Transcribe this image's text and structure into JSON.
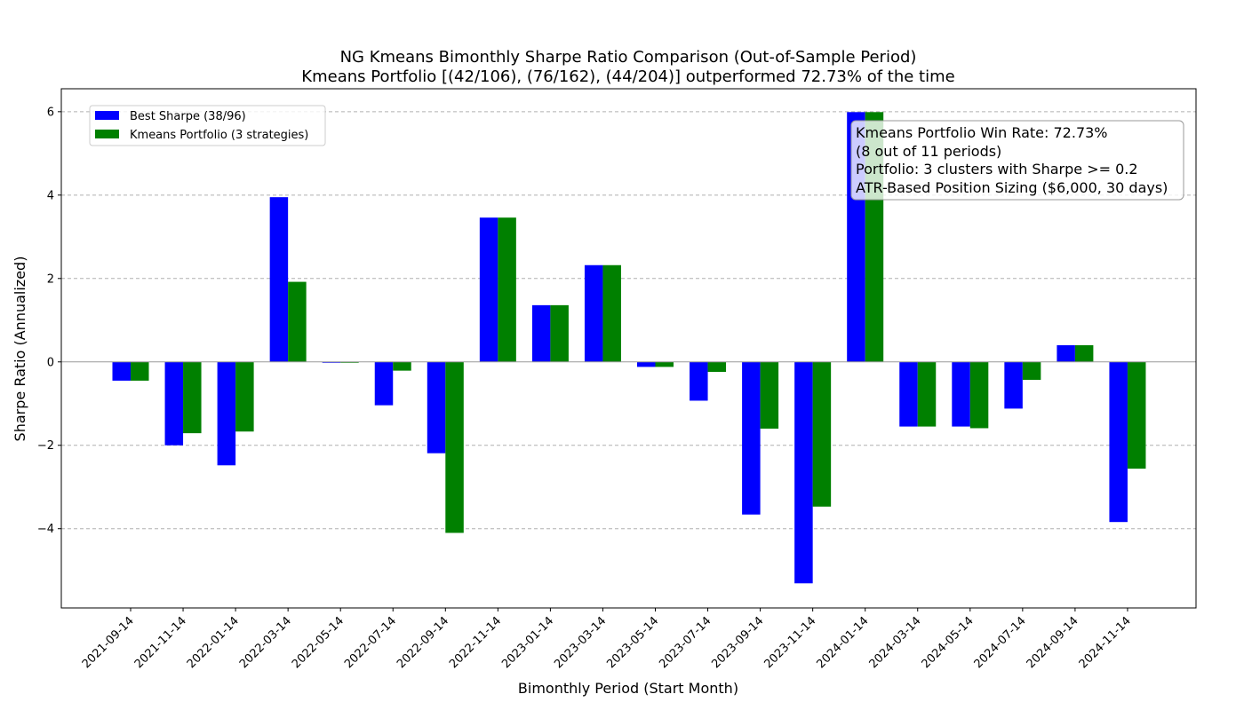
{
  "chart_data": {
    "type": "bar",
    "title": "NG Kmeans Bimonthly Sharpe Ratio Comparison (Out-of-Sample Period)",
    "subtitle": "Kmeans Portfolio [(42/106), (76/162), (44/204)] outperformed 72.73% of the time",
    "xlabel": "Bimonthly Period (Start Month)",
    "ylabel": "Sharpe Ratio (Annualized)",
    "ylim": [
      -5.9,
      6.55
    ],
    "yticks": [
      -4,
      -2,
      0,
      2,
      4,
      6
    ],
    "ytick_labels": [
      "−4",
      "−2",
      "0",
      "2",
      "4",
      "6"
    ],
    "grid": "horizontal dashed",
    "legend_position": "top-left",
    "categories": [
      "2021-09-14",
      "2021-11-14",
      "2022-01-14",
      "2022-03-14",
      "2022-05-14",
      "2022-07-14",
      "2022-09-14",
      "2022-11-14",
      "2023-01-14",
      "2023-03-14",
      "2023-05-14",
      "2023-07-14",
      "2023-09-14",
      "2023-11-14",
      "2024-01-14",
      "2024-03-14",
      "2024-05-14",
      "2024-07-14",
      "2024-09-14",
      "2024-11-14"
    ],
    "series": [
      {
        "name": "Best Sharpe (38/96)",
        "color": "#0000ff",
        "values": [
          -0.45,
          -2.0,
          -2.48,
          3.95,
          -0.02,
          -1.04,
          -2.19,
          3.46,
          1.36,
          2.32,
          -0.12,
          -0.93,
          -3.66,
          -5.31,
          5.99,
          -1.55,
          -1.55,
          -1.12,
          0.4,
          -3.84
        ]
      },
      {
        "name": "Kmeans Portfolio (3 strategies)",
        "color": "#008000",
        "values": [
          -0.45,
          -1.71,
          -1.67,
          1.92,
          -0.02,
          -0.21,
          -4.1,
          3.46,
          1.36,
          2.32,
          -0.12,
          -0.24,
          -1.6,
          -3.47,
          5.99,
          -1.55,
          -1.59,
          -0.43,
          0.4,
          -2.56
        ]
      }
    ],
    "annotation": [
      "Kmeans Portfolio Win Rate: 72.73%",
      "(8 out of 11 periods)",
      "Portfolio: 3 clusters with Sharpe >= 0.2",
      "ATR-Based Position Sizing ($6,000, 30 days)"
    ]
  }
}
